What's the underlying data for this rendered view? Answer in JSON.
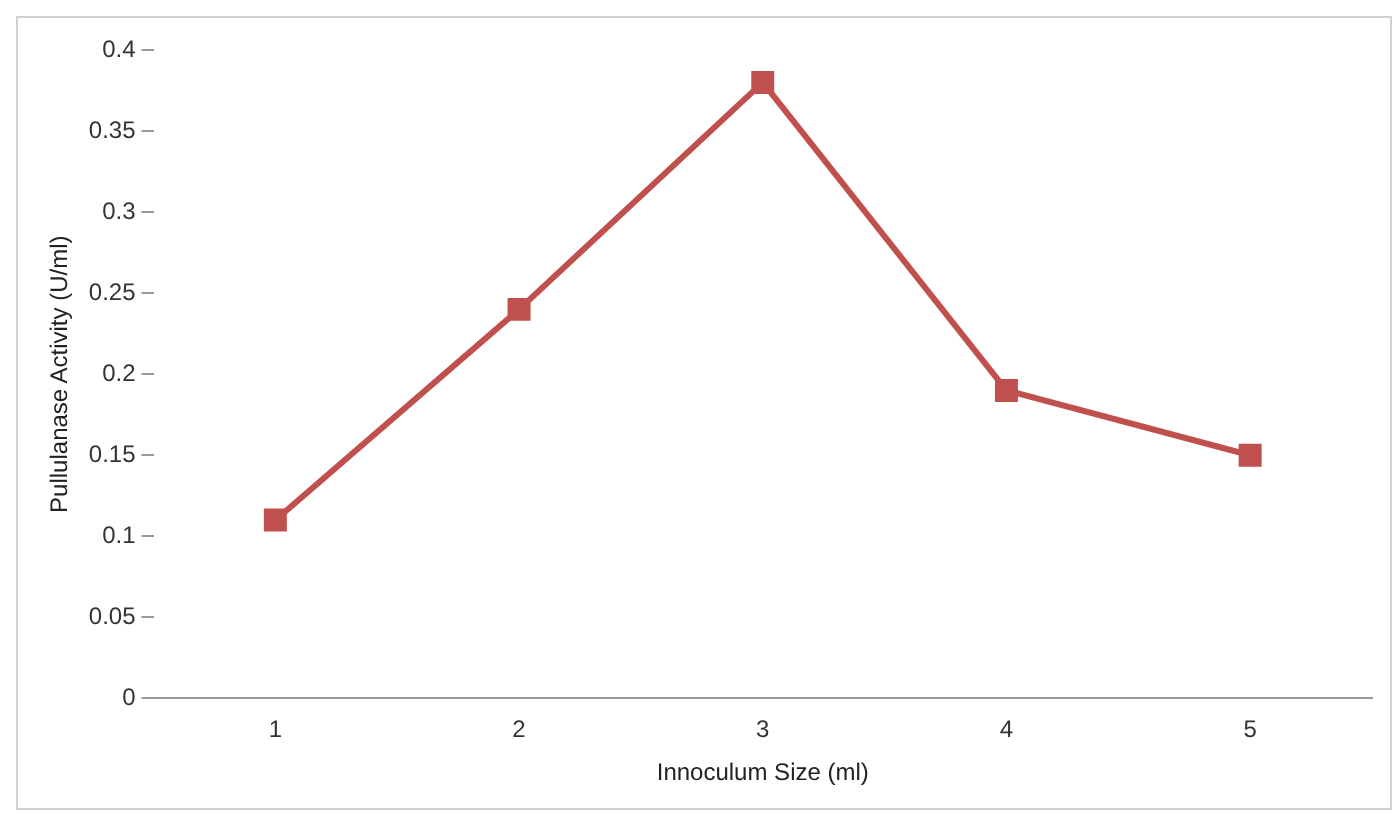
{
  "chart_data": {
    "type": "line",
    "xlabel": "Innoculum Size (ml)",
    "ylabel": "Pullulanase Activity (U/ml)",
    "categories": [
      "1",
      "2",
      "3",
      "4",
      "5"
    ],
    "series": [
      {
        "color": "#c0504d",
        "values": [
          0.11,
          0.24,
          0.38,
          0.19,
          0.15
        ]
      }
    ],
    "ylim": [
      0,
      0.4
    ],
    "yticks": [
      0,
      0.05,
      0.1,
      0.15,
      0.2,
      0.25,
      0.3,
      0.35,
      0.4
    ],
    "grid": false,
    "legend": false,
    "marker": "square",
    "line_style": "solid"
  }
}
